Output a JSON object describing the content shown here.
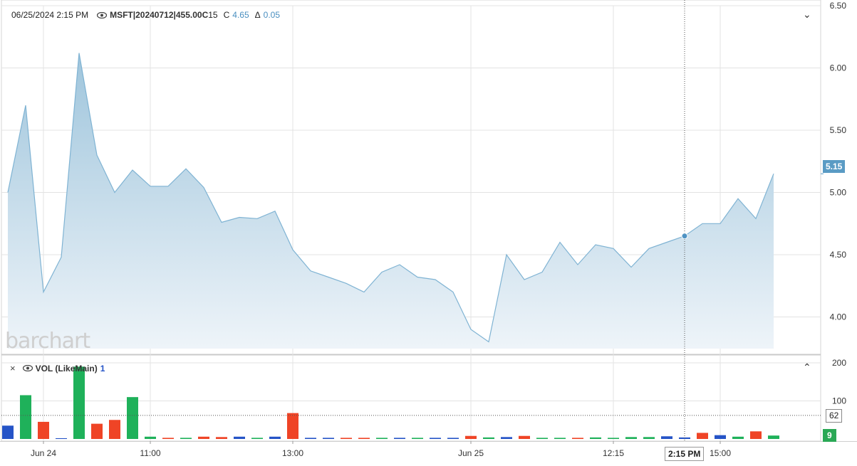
{
  "header": {
    "datetime": "06/25/2024 2:15 PM",
    "symbol": "MSFT|20240712|455.00C",
    "interval": "15",
    "close_label": "C",
    "close_value": "4.65",
    "change_label": "Δ",
    "change_value": "0.05"
  },
  "watermark": "barchart",
  "price_panel": {
    "last_price_badge": "5.15",
    "badge_color": "#5a9bc4"
  },
  "volume_panel": {
    "close_icon": "×",
    "study_label": "VOL (LikeMain)",
    "study_value": "1",
    "marker_badge": "62",
    "last_volume_badge": "9",
    "last_volume_color": "#2aa855"
  },
  "crosshair": {
    "time_label": "2:15 PM"
  },
  "chart_data": [
    {
      "type": "area",
      "series": [
        {
          "values": [
            5.0,
            5.7,
            4.2,
            4.48,
            6.12,
            5.3,
            5.0,
            5.18,
            5.05,
            5.05,
            5.19,
            5.04,
            4.76,
            4.8,
            4.79,
            4.85,
            4.54,
            4.37,
            4.32,
            4.27,
            4.2,
            4.36,
            4.42,
            4.32,
            4.3,
            4.2,
            3.9,
            3.8,
            4.5,
            4.3,
            4.36,
            4.6,
            4.42,
            4.58,
            4.55,
            4.4,
            4.55,
            4.6,
            4.65,
            4.75,
            4.75,
            4.95,
            4.79,
            5.15
          ]
        }
      ],
      "y_ticks": [
        "6.50",
        "6.00",
        "5.50",
        "5.00",
        "4.50",
        "4.00"
      ],
      "ylim": [
        3.7,
        6.5
      ],
      "x_ticks": [
        "Jun 24",
        "11:00",
        "13:00",
        "Jun 25",
        "12:15",
        "15:00"
      ],
      "highlight_point": {
        "value": 4.65,
        "label": "2:15 PM"
      },
      "grid": true,
      "colors": {
        "line": "#7fb3d3",
        "fill_top": "#9fc5dc",
        "fill_bottom": "#eef4f9"
      }
    },
    {
      "type": "bar",
      "series": [
        {
          "values": [
            35,
            115,
            45,
            2,
            190,
            40,
            50,
            110,
            6,
            3,
            3,
            6,
            5,
            6,
            3,
            6,
            68,
            3,
            3,
            3,
            3,
            3,
            3,
            3,
            3,
            3,
            8,
            4,
            5,
            8,
            3,
            3,
            3,
            4,
            3,
            5,
            5,
            7,
            4,
            16,
            10,
            6,
            20,
            9
          ],
          "colors": [
            "blue",
            "green",
            "red",
            "blue",
            "green",
            "red",
            "red",
            "green",
            "green",
            "red",
            "green",
            "red",
            "red",
            "blue",
            "green",
            "blue",
            "red",
            "blue",
            "blue",
            "red",
            "red",
            "green",
            "blue",
            "green",
            "blue",
            "blue",
            "red",
            "green",
            "blue",
            "red",
            "green",
            "green",
            "red",
            "green",
            "green",
            "green",
            "green",
            "blue",
            "blue",
            "red",
            "blue",
            "green",
            "red",
            "green"
          ]
        }
      ],
      "y_ticks": [
        "200",
        "100"
      ],
      "ylim": [
        0,
        200
      ],
      "reference_value": 62,
      "palette": {
        "green": "#1fb15a",
        "red": "#ef4426",
        "blue": "#2554c7"
      }
    }
  ]
}
